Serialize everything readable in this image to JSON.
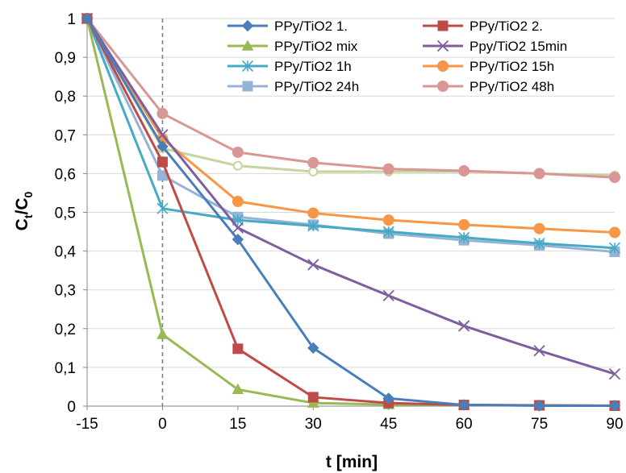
{
  "chart_data": {
    "type": "line",
    "x": [
      -15,
      0,
      15,
      30,
      45,
      60,
      75,
      90
    ],
    "xlabel": "t [min]",
    "ylabel_main": "C",
    "ylabel_sub1": "t",
    "ylabel_slash": "/C",
    "ylabel_sub2": "0",
    "xlim": [
      -15,
      90
    ],
    "ylim": [
      0,
      1
    ],
    "xticks": [
      "-15",
      "0",
      "15",
      "30",
      "45",
      "60",
      "75",
      "90"
    ],
    "yticks": [
      "0",
      "0,1",
      "0,2",
      "0,3",
      "0,4",
      "0,5",
      "0,6",
      "0,7",
      "0,8",
      "0,9",
      "1"
    ],
    "grid": "horizontal",
    "legend": "top-right",
    "reference_line_x": 0,
    "series": [
      {
        "name": "PPy/TiO2 1.",
        "color": "#4a7ebb",
        "marker": "diamond",
        "values": [
          1,
          0.67,
          0.43,
          0.15,
          0.02,
          0.003,
          0.001,
          0.001
        ]
      },
      {
        "name": "PPy/TiO2 2.",
        "color": "#be4b48",
        "marker": "square",
        "values": [
          1,
          0.63,
          0.148,
          0.023,
          0.008,
          0.003,
          0.002,
          0.001
        ]
      },
      {
        "name": "PPy/TiO2 mix",
        "color": "#98b954",
        "marker": "triangle",
        "values": [
          1,
          0.185,
          0.043,
          0.008,
          0.004,
          0.003,
          0.002,
          0.001
        ]
      },
      {
        "name": "Ppy/TiO2 15min",
        "color": "#7d5fa0",
        "marker": "x",
        "values": [
          1,
          0.7,
          0.46,
          0.365,
          0.285,
          0.207,
          0.143,
          0.083
        ]
      },
      {
        "name": "PPy/TiO2 1h",
        "color": "#46aac5",
        "marker": "star",
        "values": [
          1,
          0.51,
          0.48,
          0.465,
          0.45,
          0.435,
          0.42,
          0.408
        ]
      },
      {
        "name": "PPy/TiO2 15h",
        "color": "#f79646",
        "marker": "circle",
        "values": [
          1,
          0.69,
          0.528,
          0.498,
          0.48,
          0.468,
          0.458,
          0.448
        ]
      },
      {
        "name": "PPy/TiO2 24h",
        "color": "#95b3d7",
        "marker": "square",
        "values": [
          1,
          0.595,
          0.488,
          0.468,
          0.445,
          0.428,
          0.415,
          0.398
        ]
      },
      {
        "name": "PPy/TiO2 48h",
        "color": "#d99694",
        "marker": "circle",
        "values": [
          1,
          0.755,
          0.655,
          0.628,
          0.612,
          0.607,
          0.6,
          0.59
        ]
      },
      {
        "name": "",
        "color": "#c3d69b",
        "marker": "circle-open",
        "values": [
          1,
          0.665,
          0.62,
          0.605,
          0.605,
          0.605,
          0.6,
          0.595
        ]
      }
    ]
  }
}
